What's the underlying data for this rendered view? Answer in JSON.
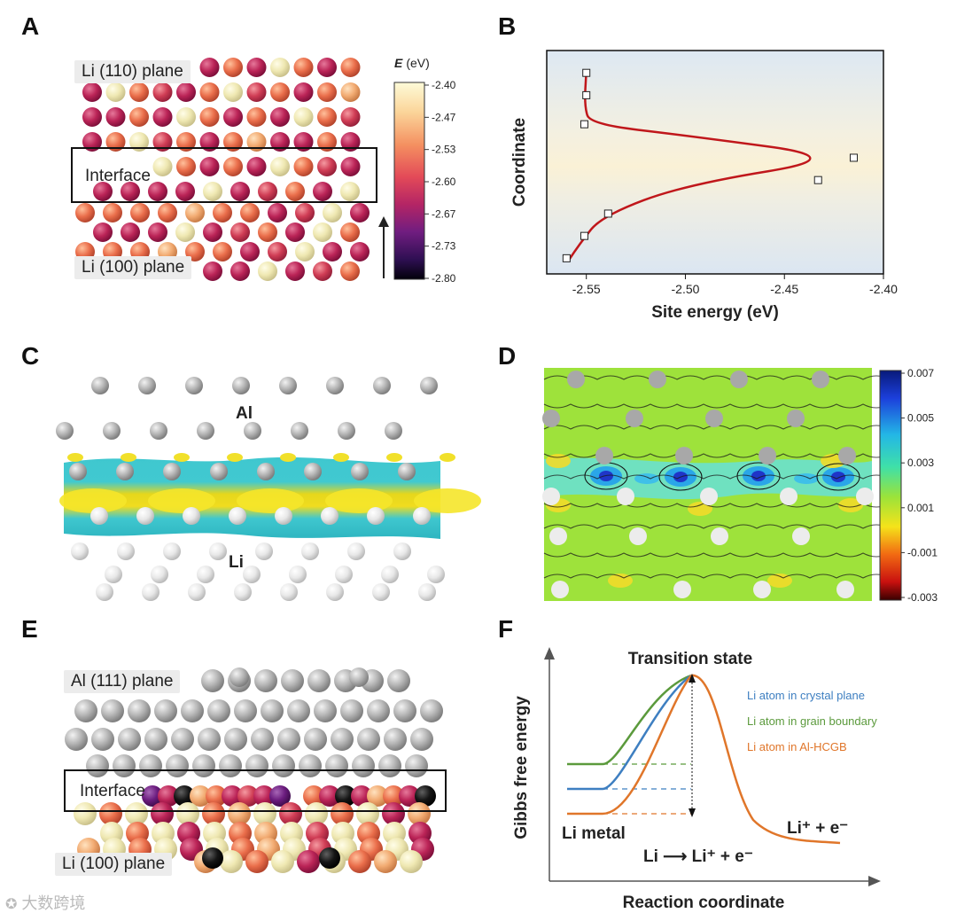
{
  "panels": {
    "A": {
      "letter": "A",
      "label_top": "Li (110) plane",
      "label_interface": "Interface",
      "label_bottom": "Li (100) plane",
      "colorbar": {
        "title_bold": "E",
        "title_unit": "(eV)",
        "ticks": [
          "-2.40",
          "-2.47",
          "-2.53",
          "-2.60",
          "-2.67",
          "-2.73",
          "-2.80"
        ]
      }
    },
    "B": {
      "letter": "B",
      "x_ticks": [
        "-2.55",
        "-2.50",
        "-2.45",
        "-2.40"
      ]
    },
    "C": {
      "letter": "C",
      "label_al": "Al",
      "label_li": "Li"
    },
    "D": {
      "letter": "D",
      "colorbar_ticks": [
        "0.007",
        "0.005",
        "0.003",
        "0.001",
        "-0.001",
        "-0.003"
      ]
    },
    "E": {
      "letter": "E",
      "label_top": "Al (111) plane",
      "label_interface": "Interface",
      "label_bottom": "Li (100) plane"
    },
    "F": {
      "letter": "F",
      "transition_state": "Transition state",
      "li_metal": "Li metal",
      "product": "Li⁺ + e⁻",
      "reaction": "Li ⟶ Li⁺ + e⁻",
      "legend": [
        {
          "label": "Li atom in crystal plane",
          "color": "#3e7fc1"
        },
        {
          "label": "Li atom in grain boundary",
          "color": "#5b9a3c"
        },
        {
          "label": "Li atom in Al-HCGB",
          "color": "#e0762a"
        }
      ]
    }
  },
  "chart_data": [
    {
      "type": "scatter",
      "title": "",
      "xlabel": "Site energy (eV)",
      "ylabel": "Coordinate",
      "xlim": [
        -2.57,
        -2.4
      ],
      "x_ticks": [
        -2.55,
        -2.5,
        -2.45,
        -2.4
      ],
      "ylim": [
        0,
        1
      ],
      "series": [
        {
          "name": "site energies",
          "marker": "open-square",
          "x": [
            -2.56,
            -2.551,
            -2.539,
            -2.415,
            -2.433,
            -2.551,
            -2.55,
            -2.55
          ],
          "y": [
            0.07,
            0.17,
            0.27,
            0.52,
            0.42,
            0.67,
            0.8,
            0.9
          ]
        },
        {
          "name": "fit",
          "marker": "line",
          "color": "#c0171b"
        }
      ]
    },
    {
      "type": "line",
      "title": "",
      "xlabel": "Reaction coordinate",
      "ylabel": "Gibbs free energy",
      "series": [
        {
          "name": "Li atom in crystal plane",
          "color": "#3e7fc1"
        },
        {
          "name": "Li atom in grain boundary",
          "color": "#5b9a3c"
        },
        {
          "name": "Li atom in Al-HCGB",
          "color": "#e0762a"
        }
      ]
    }
  ],
  "watermark": "大数跨境"
}
